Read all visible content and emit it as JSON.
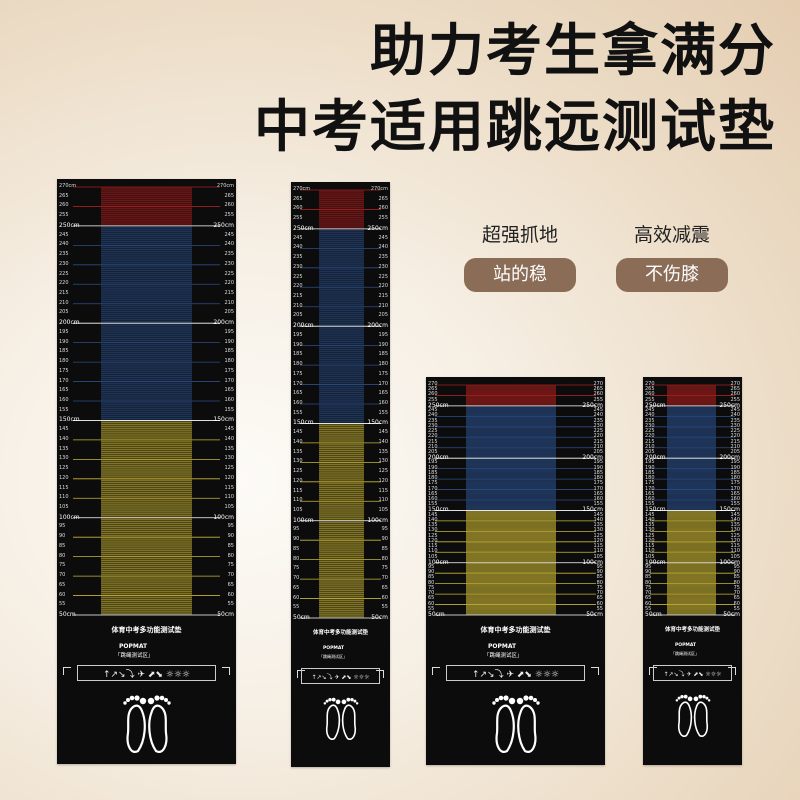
{
  "headline": {
    "line1": "助力考生拿满分",
    "line2": "中考适用跳远测试垫"
  },
  "features": [
    {
      "top": "超强抓地",
      "pill": "站的稳"
    },
    {
      "top": "高效减震",
      "pill": "不伤膝"
    }
  ],
  "mats": [
    {
      "name": "mat-270",
      "max": 270,
      "min": 50,
      "top_label": "270cm",
      "bottom_label": "50cm",
      "title": "体育中考多功能测试垫",
      "subtitle": "",
      "brand": "POPMAT",
      "zone": "「跳绳测试区」",
      "jump_icons": "↑↗↘⤵ ✈ ⬈⬊ ☼☼☼",
      "foot_icon": "👣"
    },
    {
      "name": "mat-270-b",
      "max": 270,
      "min": 50,
      "top_label": "270cm",
      "bottom_label": "50cm",
      "title": "体育中考多功能测试垫",
      "subtitle": "",
      "brand": "POPMAT",
      "zone": "「跳绳测试区」",
      "jump_icons": "↑↗↘⤵ ✈ ⬈⬊ ☼☼☼",
      "foot_icon": "👣"
    },
    {
      "name": "mat-270-c",
      "max": 270,
      "min": 50,
      "top_label": "270",
      "bottom_label": "50cm",
      "title": "体育中考多功能测试垫",
      "subtitle": "",
      "brand": "POPMAT",
      "zone": "「跳绳测试区」",
      "jump_icons": "↑↗↘⤵ ✈ ⬈⬊ ☼☼☼",
      "foot_icon": "👣"
    },
    {
      "name": "mat-270-d",
      "max": 270,
      "min": 50,
      "top_label": "270",
      "bottom_label": "50cm",
      "title": "体育中考多功能测试垫",
      "subtitle": "",
      "brand": "POPMAT",
      "zone": "「跳绳测试区」",
      "jump_icons": "↑↗↘⤵ ✈ ⬈⬊ ☼☼☼",
      "foot_icon": "👣"
    }
  ],
  "colors": {
    "red_zone": "#a81e1e",
    "blue_zone": "#2a4e86",
    "yellow_zone": "#c8b434",
    "pill_brown": "#8a6c57",
    "mat_black": "#0c0c0c"
  },
  "zones": [
    {
      "from": 250,
      "to": 270,
      "color": "red_zone"
    },
    {
      "from": 150,
      "to": 250,
      "color": "blue_zone"
    },
    {
      "from": 50,
      "to": 150,
      "color": "yellow_zone"
    }
  ]
}
